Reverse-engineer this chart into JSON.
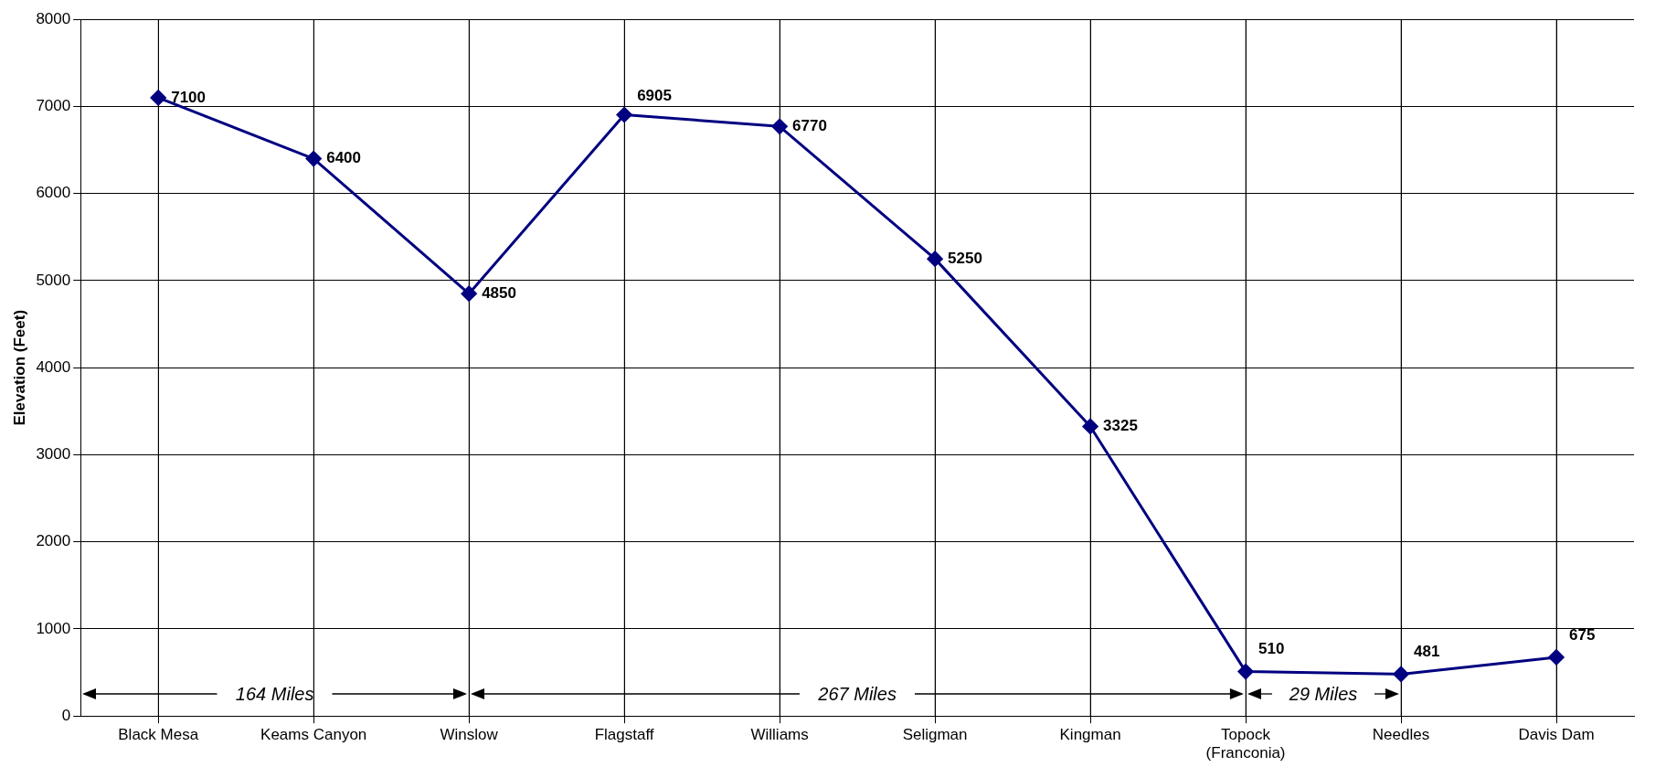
{
  "chart_data": {
    "type": "line",
    "ylabel": "Elevation (Feet)",
    "categories": [
      "Black Mesa",
      "Keams Canyon",
      "Winslow",
      "Flagstaff",
      "Williams",
      "Seligman",
      "Kingman",
      "Topock (Franconia)",
      "Needles",
      "Davis Dam"
    ],
    "series": [
      {
        "color": "#000080",
        "values": [
          7100,
          6400,
          4850,
          6905,
          6770,
          5250,
          3325,
          510,
          481,
          675
        ]
      }
    ],
    "ylim": [
      0,
      8000
    ],
    "yticks": [
      0,
      1000,
      2000,
      3000,
      4000,
      5000,
      6000,
      7000,
      8000
    ],
    "grid": true,
    "legend": false,
    "marker": "diamond",
    "line_style": "solid",
    "data_labels": true,
    "annotations": [
      "164 Miles",
      "267 Miles",
      "29 Miles"
    ]
  }
}
